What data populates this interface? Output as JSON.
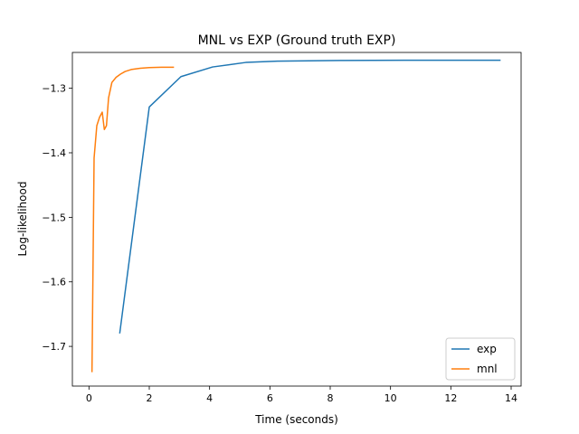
{
  "colors": {
    "exp": "#1f77b4",
    "mnl": "#ff7f0e",
    "axis": "#000000",
    "legend_border": "#cccccc"
  },
  "chart_data": {
    "type": "line",
    "title": "MNL vs EXP (Ground truth EXP)",
    "xlabel": "Time (seconds)",
    "ylabel": "Log-likelihood",
    "xlim": [
      -0.55,
      14.33
    ],
    "ylim": [
      -1.7615,
      -1.2445
    ],
    "xticks": [
      0,
      2,
      4,
      6,
      8,
      10,
      12,
      14
    ],
    "xtick_labels": [
      "0",
      "2",
      "4",
      "6",
      "8",
      "10",
      "12",
      "14"
    ],
    "yticks": [
      -1.7,
      -1.6,
      -1.5,
      -1.4,
      -1.3
    ],
    "ytick_labels": [
      "−1.7",
      "−1.6",
      "−1.5",
      "−1.4",
      "−1.3"
    ],
    "grid": false,
    "legend_position": "lower right",
    "series": [
      {
        "name": "exp",
        "color": "#1f77b4",
        "x": [
          1.02,
          2.0,
          3.05,
          4.1,
          5.2,
          6.25,
          7.3,
          8.35,
          9.4,
          10.45,
          11.5,
          12.55,
          13.65
        ],
        "y": [
          -1.68,
          -1.329,
          -1.282,
          -1.267,
          -1.26,
          -1.258,
          -1.2575,
          -1.257,
          -1.2568,
          -1.2566,
          -1.2566,
          -1.2566,
          -1.2566
        ]
      },
      {
        "name": "mnl",
        "color": "#ff7f0e",
        "x": [
          0.1,
          0.17,
          0.26,
          0.35,
          0.44,
          0.51,
          0.58,
          0.65,
          0.76,
          0.9,
          1.05,
          1.2,
          1.4,
          1.7,
          2.0,
          2.4,
          2.82
        ],
        "y": [
          -1.74,
          -1.408,
          -1.358,
          -1.345,
          -1.337,
          -1.364,
          -1.358,
          -1.315,
          -1.291,
          -1.283,
          -1.278,
          -1.274,
          -1.271,
          -1.269,
          -1.268,
          -1.2675,
          -1.2675
        ]
      }
    ]
  }
}
